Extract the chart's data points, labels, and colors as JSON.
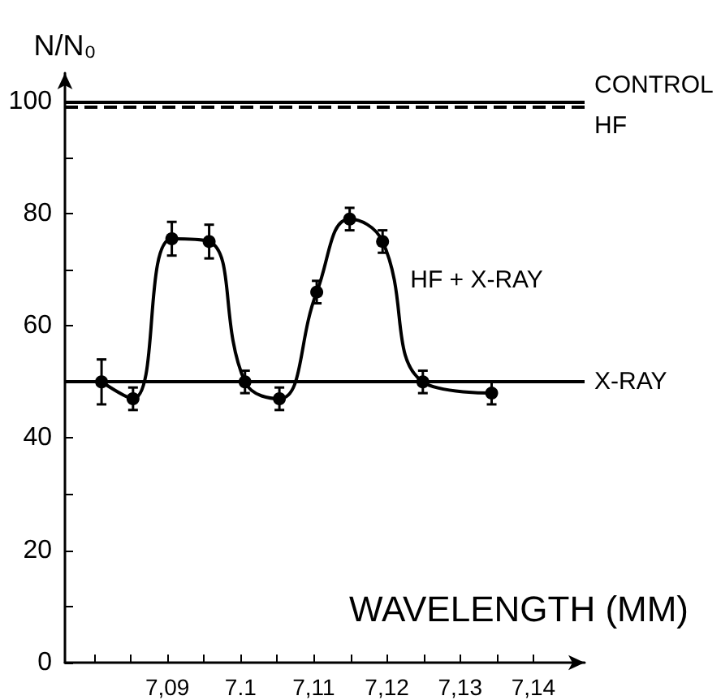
{
  "chart_data": {
    "type": "line",
    "xlabel": "WAVELENGTH (MM)",
    "ylabel": "N/N₀",
    "x": [
      7.081,
      7.0853,
      7.0906,
      7.0957,
      7.1006,
      7.1053,
      7.1104,
      7.1149,
      7.1194,
      7.1249,
      7.1343
    ],
    "series": [
      {
        "name": "HF + X-RAY",
        "color": "#000000",
        "values": [
          50,
          47,
          75.5,
          75,
          50,
          47,
          66,
          79,
          75,
          50,
          48
        ],
        "errors": [
          4,
          2,
          3,
          3,
          2,
          2,
          2,
          2,
          2,
          2,
          2
        ]
      }
    ],
    "xlim": [
      7.076,
      7.147
    ],
    "xticks": [
      {
        "value": 7.08,
        "label": null
      },
      {
        "value": 7.085,
        "label": null
      },
      {
        "value": 7.09,
        "label": "7,09"
      },
      {
        "value": 7.095,
        "label": null
      },
      {
        "value": 7.1,
        "label": "7.1"
      },
      {
        "value": 7.105,
        "label": null
      },
      {
        "value": 7.11,
        "label": "7,11"
      },
      {
        "value": 7.115,
        "label": null
      },
      {
        "value": 7.12,
        "label": "7,12"
      },
      {
        "value": 7.125,
        "label": null
      },
      {
        "value": 7.13,
        "label": "7,13"
      },
      {
        "value": 7.135,
        "label": null
      },
      {
        "value": 7.14,
        "label": "7,14"
      }
    ],
    "ylim": [
      0,
      105
    ],
    "yticks": [
      0,
      {
        "value": 10,
        "label": null
      },
      20,
      {
        "value": 30,
        "label": null
      },
      40,
      {
        "value": 50,
        "label": null
      },
      60,
      {
        "value": 70,
        "label": null
      },
      80,
      {
        "value": 90,
        "label": null
      },
      100
    ],
    "ref_lines": [
      {
        "axis": "y",
        "value": 100,
        "label": "CONTROL",
        "color": "#000000",
        "line_style": "solid"
      },
      {
        "axis": "y",
        "value": 99,
        "label": "HF",
        "color": "#000000",
        "line_style": "dashed"
      },
      {
        "axis": "y",
        "value": 50,
        "label": "X-RAY",
        "color": "#000000",
        "line_style": "solid"
      }
    ],
    "grid": false,
    "marker": "circle",
    "line_style": "solid"
  }
}
